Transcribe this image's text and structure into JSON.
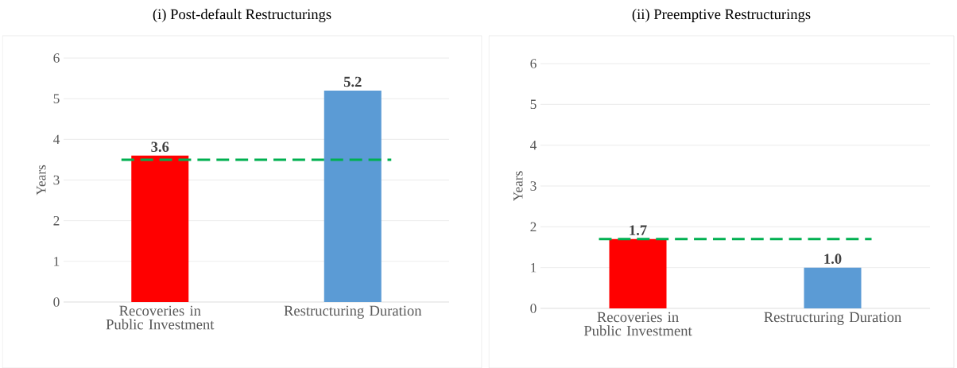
{
  "chart_data": [
    {
      "type": "bar",
      "title": "(i) Post-default Restructurings",
      "ylabel": "Years",
      "categories": [
        "Recoveries in Public Investment",
        "Restructuring Duration"
      ],
      "values": [
        3.6,
        5.2
      ],
      "value_labels": [
        "3.6",
        "5.2"
      ],
      "colors": [
        "#ff0000",
        "#5b9bd5"
      ],
      "ylim": [
        0,
        6
      ],
      "yticks": [
        0,
        1,
        2,
        3,
        4,
        5,
        6
      ],
      "grid": "y",
      "ref_lines": [
        {
          "axis": "y",
          "value": 3.5,
          "color": "#00b050",
          "line_style": "dashed"
        }
      ]
    },
    {
      "type": "bar",
      "title": "(ii) Preemptive Restructurings",
      "ylabel": "Years",
      "categories": [
        "Recoveries in Public Investment",
        "Restructuring Duration"
      ],
      "values": [
        1.7,
        1.0
      ],
      "value_labels": [
        "1.7",
        "1.0"
      ],
      "colors": [
        "#ff0000",
        "#5b9bd5"
      ],
      "ylim": [
        0,
        6
      ],
      "yticks": [
        0,
        1,
        2,
        3,
        4,
        5,
        6
      ],
      "grid": "y",
      "ref_lines": [
        {
          "axis": "y",
          "value": 1.7,
          "color": "#00b050",
          "line_style": "dashed"
        }
      ]
    }
  ]
}
